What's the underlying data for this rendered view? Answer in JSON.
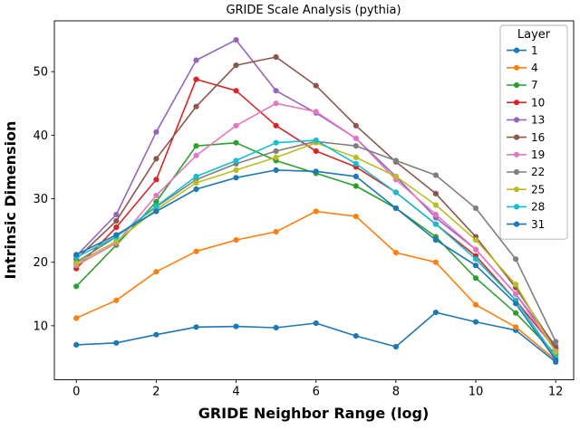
{
  "chart_data": {
    "type": "line",
    "title": "GRIDE Scale Analysis (pythia)",
    "xlabel": "GRIDE Neighbor Range (log)",
    "ylabel": "Intrinsic Dimension",
    "legend_title": "Layer",
    "legend_position": "upper right",
    "grid": false,
    "x": [
      0,
      1,
      2,
      3,
      4,
      5,
      6,
      7,
      8,
      9,
      10,
      11,
      12
    ],
    "xticks": [
      0,
      2,
      4,
      6,
      8,
      10,
      12
    ],
    "yticks": [
      10,
      20,
      30,
      40,
      50
    ],
    "xlim": [
      -0.55,
      12.45
    ],
    "ylim": [
      1.5,
      58
    ],
    "series": [
      {
        "name": "1",
        "color": "#1f77b4",
        "values": [
          7.0,
          7.3,
          8.6,
          9.8,
          9.9,
          9.7,
          10.4,
          8.4,
          6.7,
          12.1,
          10.6,
          9.3,
          4.3
        ]
      },
      {
        "name": "4",
        "color": "#ff7f0e",
        "values": [
          11.2,
          14.0,
          18.5,
          21.7,
          23.5,
          24.8,
          28.0,
          27.2,
          21.5,
          20.0,
          13.3,
          9.8,
          4.6
        ]
      },
      {
        "name": "7",
        "color": "#2ca02c",
        "values": [
          16.2,
          22.7,
          29.5,
          38.3,
          38.8,
          36.0,
          34.0,
          32.0,
          28.5,
          24.0,
          17.5,
          12.0,
          5.5
        ]
      },
      {
        "name": "10",
        "color": "#d62728",
        "values": [
          19.0,
          25.5,
          33.0,
          48.8,
          47.0,
          41.5,
          37.5,
          35.0,
          31.0,
          26.0,
          21.0,
          14.0,
          6.3
        ]
      },
      {
        "name": "13",
        "color": "#9467bd",
        "values": [
          21.0,
          27.5,
          40.5,
          51.8,
          55.0,
          47.0,
          43.5,
          39.5,
          33.5,
          27.0,
          22.0,
          15.0,
          6.8
        ]
      },
      {
        "name": "16",
        "color": "#8c564b",
        "values": [
          20.5,
          26.5,
          36.3,
          44.5,
          51.0,
          52.3,
          47.8,
          41.5,
          35.8,
          30.8,
          24.0,
          16.0,
          6.5
        ]
      },
      {
        "name": "19",
        "color": "#e377c2",
        "values": [
          19.5,
          23.0,
          30.5,
          36.8,
          41.5,
          45.0,
          43.7,
          39.5,
          33.0,
          27.5,
          22.0,
          15.0,
          6.0
        ]
      },
      {
        "name": "22",
        "color": "#7f7f7f",
        "values": [
          20.0,
          24.0,
          28.7,
          33.0,
          35.5,
          37.5,
          39.0,
          38.3,
          36.0,
          33.7,
          28.5,
          20.5,
          7.5
        ]
      },
      {
        "name": "25",
        "color": "#bcbd22",
        "values": [
          19.8,
          23.3,
          28.3,
          32.5,
          34.5,
          36.5,
          38.8,
          36.5,
          33.5,
          29.0,
          23.5,
          16.5,
          5.8
        ]
      },
      {
        "name": "28",
        "color": "#17becf",
        "values": [
          20.8,
          24.0,
          28.8,
          33.5,
          36.0,
          38.8,
          39.2,
          35.5,
          31.0,
          26.0,
          20.5,
          14.0,
          5.0
        ]
      },
      {
        "name": "31",
        "color": "#1f77b4",
        "values": [
          21.2,
          24.3,
          28.0,
          31.5,
          33.3,
          34.5,
          34.3,
          33.5,
          28.5,
          23.5,
          19.5,
          13.5,
          4.6
        ]
      }
    ]
  }
}
